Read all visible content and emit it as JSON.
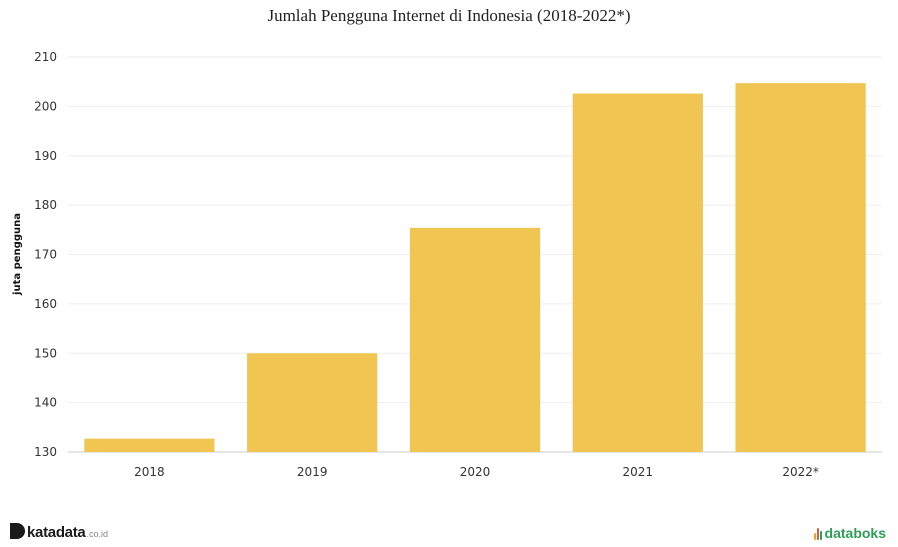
{
  "chart_data": {
    "type": "bar",
    "title": "Jumlah Pengguna Internet di Indonesia (2018-2022*)",
    "ylabel": "juta pengguna",
    "xlabel": "",
    "categories": [
      "2018",
      "2019",
      "2020",
      "2021",
      "2022*"
    ],
    "values": [
      132.7,
      150.0,
      175.4,
      202.6,
      204.7
    ],
    "ylim": [
      130,
      210
    ],
    "yticks": [
      130,
      140,
      150,
      160,
      170,
      180,
      190,
      200,
      210
    ],
    "grid": true,
    "bar_color": "#f0c551"
  },
  "footer": {
    "left_brand": "katadata",
    "left_suffix": ".co.id",
    "right_brand": "databoks",
    "left_color": "#1a1a1a",
    "right_color": "#2e9e57"
  }
}
